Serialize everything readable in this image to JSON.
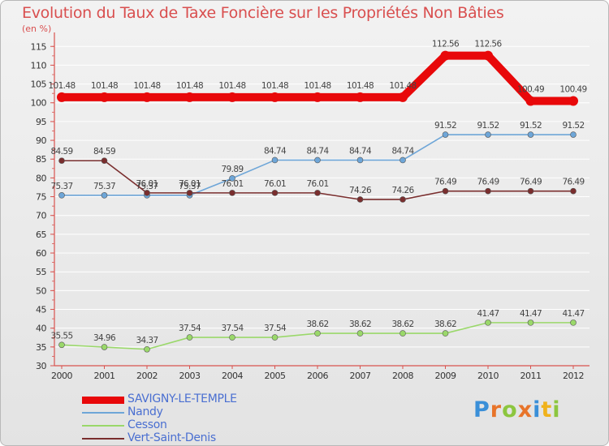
{
  "header": {
    "title": "Evolution du Taux de Taxe Foncière sur les Propriétés Non Bâties",
    "unit": "(en %)"
  },
  "logo": {
    "letters": [
      "P",
      "r",
      "o",
      "x",
      "i",
      "t",
      "i"
    ]
  },
  "colors": {
    "title": "#d94f4f",
    "axis": "#d9534f",
    "background": "#ebebeb"
  },
  "chart_data": {
    "type": "line",
    "title": "Evolution du Taux de Taxe Foncière sur les Propriétés Non Bâties",
    "ylabel": "(en %)",
    "xlabel": "",
    "x": [
      "2000",
      "2001",
      "2002",
      "2003",
      "2004",
      "2005",
      "2006",
      "2007",
      "2008",
      "2009",
      "2010",
      "2011",
      "2012"
    ],
    "ylim": [
      30,
      117
    ],
    "yticks": [
      30,
      35,
      40,
      45,
      50,
      55,
      60,
      65,
      70,
      75,
      80,
      85,
      90,
      95,
      100,
      105,
      110,
      115
    ],
    "grid": "horizontal",
    "legend_position": "bottom-left",
    "series": [
      {
        "name": "SAVIGNY-LE-TEMPLE",
        "color": "#e8080a",
        "values": [
          101.48,
          101.48,
          101.48,
          101.48,
          101.48,
          101.48,
          101.48,
          101.48,
          101.48,
          112.56,
          112.56,
          100.49,
          100.49
        ],
        "labels": [
          "101.48",
          "101.48",
          "101.48",
          "101.48",
          "101.48",
          "101.48",
          "101.48",
          "101.48",
          "101.48",
          "112.56",
          "112.56",
          "100.49",
          "100.49"
        ]
      },
      {
        "name": "Nandy",
        "color": "#6ea6d8",
        "values": [
          75.37,
          75.37,
          75.37,
          75.37,
          79.89,
          84.74,
          84.74,
          84.74,
          84.74,
          91.52,
          91.52,
          91.52,
          91.52
        ],
        "labels": [
          "75.37",
          "75.37",
          "75.37",
          "75.37",
          "79.89",
          "84.74",
          "84.74",
          "84.74",
          "84.74",
          "91.52",
          "91.52",
          "91.52",
          "91.52"
        ]
      },
      {
        "name": "Cesson",
        "color": "#9ad86a",
        "values": [
          35.55,
          34.96,
          34.37,
          37.54,
          37.54,
          37.54,
          38.62,
          38.62,
          38.62,
          38.62,
          41.47,
          41.47,
          41.47
        ],
        "labels": [
          "35.55",
          "34.96",
          "34.37",
          "37.54",
          "37.54",
          "37.54",
          "38.62",
          "38.62",
          "38.62",
          "38.62",
          "41.47",
          "41.47",
          "41.47"
        ]
      },
      {
        "name": "Vert-Saint-Denis",
        "color": "#7a2e2e",
        "values": [
          84.59,
          84.59,
          76.01,
          76.01,
          76.01,
          76.01,
          76.01,
          74.26,
          74.26,
          76.49,
          76.49,
          76.49,
          76.49
        ],
        "labels": [
          "84.59",
          "84.59",
          "76.01",
          "76.01",
          "76.01",
          "76.01",
          "76.01",
          "74.26",
          "74.26",
          "76.49",
          "76.49",
          "76.49",
          "76.49"
        ]
      }
    ]
  }
}
